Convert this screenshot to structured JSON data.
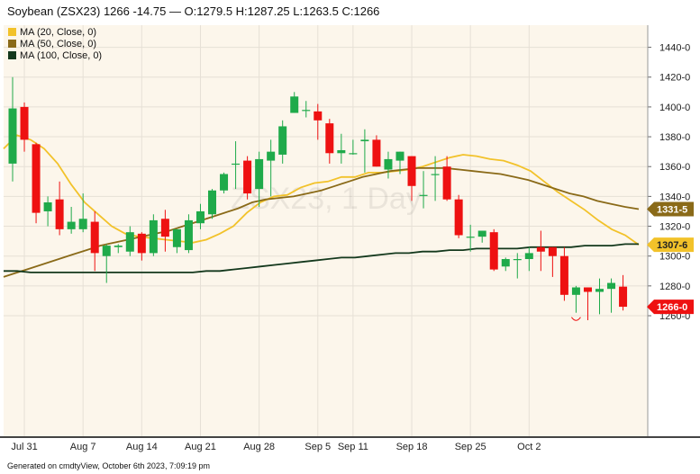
{
  "chart_data": {
    "type": "candlestick",
    "title": "Soybean (ZSX23) 1266 -14.75 — O:1279.5 H:1287.25 L:1263.5 C:1266",
    "watermark": "ZSX23, 1 Day",
    "footer": "Generated on cmdtyView, October 6th 2023, 7:09:19 pm",
    "y_ticks": [
      "1260-0",
      "1280-0",
      "1300-0",
      "1320-0",
      "1340-0",
      "1360-0",
      "1380-0",
      "1400-0",
      "1420-0",
      "1440-0"
    ],
    "x_ticks": [
      {
        "label": "Jul 31",
        "index": 1
      },
      {
        "label": "Aug 7",
        "index": 6
      },
      {
        "label": "Aug 14",
        "index": 11
      },
      {
        "label": "Aug 21",
        "index": 16
      },
      {
        "label": "Aug 28",
        "index": 21
      },
      {
        "label": "Sep 5",
        "index": 26
      },
      {
        "label": "Sep 11",
        "index": 29
      },
      {
        "label": "Sep 18",
        "index": 34
      },
      {
        "label": "Sep 25",
        "index": 39
      },
      {
        "label": "Oct 2",
        "index": 44
      }
    ],
    "ylim": [
      1252,
      1450
    ],
    "up_color": "#1faa4a",
    "down_color": "#ee1111",
    "grid": true,
    "legend_position": "top-left",
    "candles": [
      {
        "o": 1362,
        "h": 1420,
        "l": 1350,
        "c": 1399
      },
      {
        "o": 1400,
        "h": 1403,
        "l": 1370,
        "c": 1378
      },
      {
        "o": 1375,
        "h": 1376,
        "l": 1322,
        "c": 1329
      },
      {
        "o": 1330,
        "h": 1340,
        "l": 1320,
        "c": 1336
      },
      {
        "o": 1338,
        "h": 1350,
        "l": 1314,
        "c": 1318
      },
      {
        "o": 1318,
        "h": 1333,
        "l": 1315,
        "c": 1323
      },
      {
        "o": 1318,
        "h": 1342,
        "l": 1316,
        "c": 1325
      },
      {
        "o": 1323,
        "h": 1330,
        "l": 1290,
        "c": 1302
      },
      {
        "o": 1300,
        "h": 1308,
        "l": 1282,
        "c": 1307
      },
      {
        "o": 1306,
        "h": 1308,
        "l": 1302,
        "c": 1307
      },
      {
        "o": 1303,
        "h": 1320,
        "l": 1300,
        "c": 1316
      },
      {
        "o": 1315,
        "h": 1316,
        "l": 1297,
        "c": 1302
      },
      {
        "o": 1302,
        "h": 1328,
        "l": 1300,
        "c": 1324
      },
      {
        "o": 1325,
        "h": 1331,
        "l": 1303,
        "c": 1313
      },
      {
        "o": 1306,
        "h": 1318,
        "l": 1302,
        "c": 1318
      },
      {
        "o": 1304,
        "h": 1328,
        "l": 1302,
        "c": 1324
      },
      {
        "o": 1322,
        "h": 1335,
        "l": 1318,
        "c": 1330
      },
      {
        "o": 1328,
        "h": 1345,
        "l": 1325,
        "c": 1344
      },
      {
        "o": 1344,
        "h": 1356,
        "l": 1342,
        "c": 1355
      },
      {
        "o": 1362,
        "h": 1377,
        "l": 1345,
        "c": 1362
      },
      {
        "o": 1364,
        "h": 1367,
        "l": 1338,
        "c": 1342
      },
      {
        "o": 1345,
        "h": 1370,
        "l": 1333,
        "c": 1365
      },
      {
        "o": 1364,
        "h": 1378,
        "l": 1340,
        "c": 1370
      },
      {
        "o": 1368,
        "h": 1391,
        "l": 1362,
        "c": 1387
      },
      {
        "o": 1396,
        "h": 1410,
        "l": 1396,
        "c": 1407
      },
      {
        "o": 1398,
        "h": 1404,
        "l": 1393,
        "c": 1398
      },
      {
        "o": 1397,
        "h": 1402,
        "l": 1378,
        "c": 1391
      },
      {
        "o": 1389,
        "h": 1392,
        "l": 1362,
        "c": 1369
      },
      {
        "o": 1369,
        "h": 1382,
        "l": 1362,
        "c": 1371
      },
      {
        "o": 1369,
        "h": 1378,
        "l": 1368,
        "c": 1369
      },
      {
        "o": 1377,
        "h": 1385,
        "l": 1356,
        "c": 1378
      },
      {
        "o": 1378,
        "h": 1381,
        "l": 1360,
        "c": 1360
      },
      {
        "o": 1358,
        "h": 1370,
        "l": 1352,
        "c": 1365
      },
      {
        "o": 1364,
        "h": 1370,
        "l": 1355,
        "c": 1370
      },
      {
        "o": 1367,
        "h": 1367,
        "l": 1337,
        "c": 1347
      },
      {
        "o": 1341,
        "h": 1357,
        "l": 1332,
        "c": 1341
      },
      {
        "o": 1355,
        "h": 1367,
        "l": 1337,
        "c": 1355
      },
      {
        "o": 1360,
        "h": 1367,
        "l": 1337,
        "c": 1338
      },
      {
        "o": 1338,
        "h": 1341,
        "l": 1312,
        "c": 1314
      },
      {
        "o": 1313,
        "h": 1321,
        "l": 1303,
        "c": 1313
      },
      {
        "o": 1313,
        "h": 1317,
        "l": 1309,
        "c": 1317
      },
      {
        "o": 1316,
        "h": 1318,
        "l": 1290,
        "c": 1291
      },
      {
        "o": 1293,
        "h": 1299,
        "l": 1290,
        "c": 1298
      },
      {
        "o": 1298,
        "h": 1302,
        "l": 1285,
        "c": 1298
      },
      {
        "o": 1298,
        "h": 1306,
        "l": 1290,
        "c": 1302
      },
      {
        "o": 1306,
        "h": 1317,
        "l": 1290,
        "c": 1303
      },
      {
        "o": 1306,
        "h": 1306,
        "l": 1286,
        "c": 1300
      },
      {
        "o": 1300,
        "h": 1306,
        "l": 1270,
        "c": 1274
      },
      {
        "o": 1274,
        "h": 1280,
        "l": 1262,
        "c": 1279
      },
      {
        "o": 1279,
        "h": 1279,
        "l": 1257,
        "c": 1276
      },
      {
        "o": 1276,
        "h": 1285,
        "l": 1261,
        "c": 1278
      },
      {
        "o": 1278,
        "h": 1285,
        "l": 1262,
        "c": 1282
      },
      {
        "o": 1279.5,
        "h": 1287.25,
        "l": 1263.5,
        "c": 1266
      }
    ],
    "series": [
      {
        "name": "MA (20, Close, 0)",
        "color": "#f2c22a",
        "last_label": "1307-6",
        "last_value": 1307.6,
        "values": [
          1372,
          1381,
          1378,
          1372,
          1362,
          1348,
          1336,
          1328,
          1320,
          1315,
          1313,
          1312,
          1311,
          1310,
          1309,
          1311,
          1315,
          1320,
          1329,
          1336,
          1340,
          1341,
          1346,
          1349,
          1350,
          1353,
          1353,
          1356,
          1356,
          1357,
          1358,
          1360,
          1363,
          1366,
          1368,
          1367,
          1365,
          1364,
          1361,
          1357,
          1350,
          1343,
          1337,
          1331,
          1324,
          1318,
          1314,
          1307.6
        ]
      },
      {
        "name": "MA (50, Close, 0)",
        "color": "#8a6a18",
        "last_label": "1331-5",
        "last_value": 1331.5,
        "values": [
          1286,
          1289,
          1292,
          1295,
          1298,
          1301,
          1304,
          1307,
          1309,
          1311,
          1313,
          1315,
          1317,
          1320,
          1323,
          1326,
          1329,
          1332,
          1336,
          1338,
          1339,
          1340,
          1342,
          1344,
          1347,
          1350,
          1353,
          1355,
          1357,
          1358,
          1359,
          1359,
          1359,
          1358,
          1357,
          1356,
          1355,
          1353,
          1351,
          1348,
          1345,
          1342,
          1340,
          1337,
          1335,
          1333,
          1331.5
        ]
      },
      {
        "name": "MA (100, Close, 0)",
        "color": "#13381c",
        "last_label": "",
        "last_value": 1308,
        "values": [
          1290,
          1290,
          1289,
          1289,
          1289,
          1289,
          1289,
          1289,
          1289,
          1289,
          1289,
          1289,
          1289,
          1289,
          1289,
          1290,
          1290,
          1291,
          1292,
          1293,
          1294,
          1295,
          1296,
          1297,
          1298,
          1299,
          1299,
          1300,
          1301,
          1302,
          1302,
          1303,
          1303,
          1304,
          1304,
          1305,
          1305,
          1305,
          1305,
          1306,
          1306,
          1306,
          1306,
          1307,
          1307,
          1307,
          1308,
          1308
        ]
      }
    ],
    "last_close_label": "1266-0",
    "last_close_value": 1266
  }
}
